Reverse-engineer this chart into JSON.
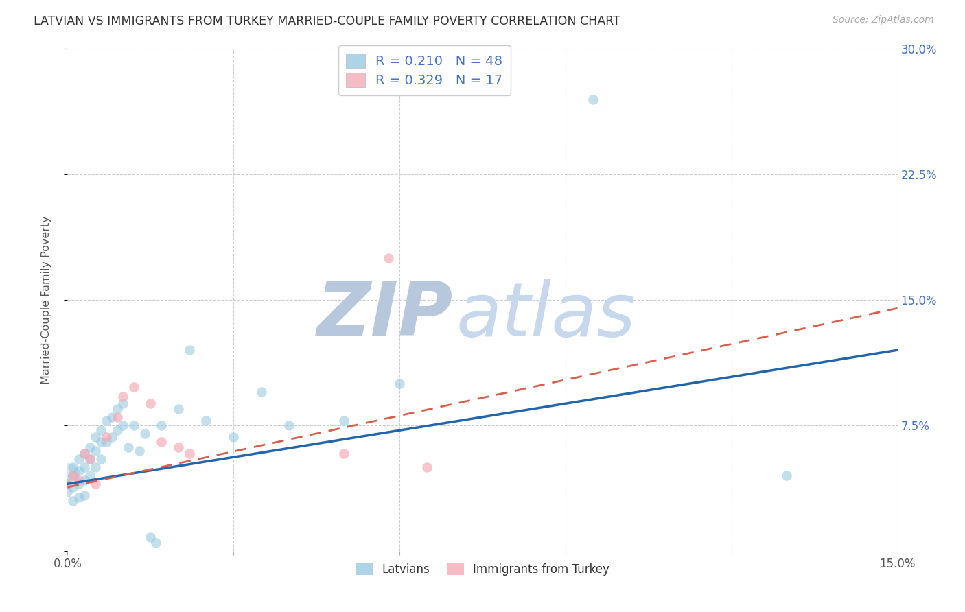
{
  "title": "LATVIAN VS IMMIGRANTS FROM TURKEY MARRIED-COUPLE FAMILY POVERTY CORRELATION CHART",
  "source": "Source: ZipAtlas.com",
  "ylabel": "Married-Couple Family Poverty",
  "x_min": 0.0,
  "x_max": 0.15,
  "y_min": 0.0,
  "y_max": 0.3,
  "latvian_color": "#92c5de",
  "turkey_color": "#f4a6b2",
  "latvian_line_color": "#2166ac",
  "turkey_line_color": "#d6604d",
  "legend_latvian_label": "Latvians",
  "legend_turkey_label": "Immigrants from Turkey",
  "R_latvian": 0.21,
  "N_latvian": 48,
  "R_turkey": 0.329,
  "N_turkey": 17,
  "latvian_x": [
    0.0,
    0.0,
    0.001,
    0.001,
    0.001,
    0.001,
    0.002,
    0.002,
    0.002,
    0.002,
    0.003,
    0.003,
    0.003,
    0.003,
    0.004,
    0.004,
    0.004,
    0.005,
    0.005,
    0.005,
    0.006,
    0.006,
    0.006,
    0.007,
    0.007,
    0.008,
    0.008,
    0.009,
    0.009,
    0.01,
    0.01,
    0.011,
    0.012,
    0.013,
    0.014,
    0.015,
    0.016,
    0.017,
    0.02,
    0.022,
    0.025,
    0.03,
    0.035,
    0.04,
    0.05,
    0.06,
    0.095,
    0.13
  ],
  "latvian_y": [
    0.04,
    0.035,
    0.05,
    0.045,
    0.038,
    0.03,
    0.055,
    0.048,
    0.04,
    0.032,
    0.058,
    0.05,
    0.042,
    0.033,
    0.062,
    0.055,
    0.045,
    0.068,
    0.06,
    0.05,
    0.072,
    0.065,
    0.055,
    0.078,
    0.065,
    0.08,
    0.068,
    0.085,
    0.072,
    0.088,
    0.075,
    0.062,
    0.075,
    0.06,
    0.07,
    0.008,
    0.005,
    0.075,
    0.085,
    0.12,
    0.078,
    0.068,
    0.095,
    0.075,
    0.078,
    0.1,
    0.27,
    0.045
  ],
  "latvian_large_x": [
    0.0
  ],
  "latvian_large_y": [
    0.045
  ],
  "turkey_x": [
    0.0,
    0.001,
    0.002,
    0.003,
    0.004,
    0.005,
    0.007,
    0.009,
    0.01,
    0.012,
    0.015,
    0.017,
    0.02,
    0.022,
    0.05,
    0.058,
    0.065
  ],
  "turkey_y": [
    0.04,
    0.045,
    0.042,
    0.058,
    0.055,
    0.04,
    0.068,
    0.08,
    0.092,
    0.098,
    0.088,
    0.065,
    0.062,
    0.058,
    0.058,
    0.175,
    0.05
  ],
  "line_latvian_x0": 0.0,
  "line_latvian_y0": 0.04,
  "line_latvian_x1": 0.15,
  "line_latvian_y1": 0.12,
  "line_turkey_x0": 0.0,
  "line_turkey_y0": 0.038,
  "line_turkey_x1": 0.15,
  "line_turkey_y1": 0.145
}
